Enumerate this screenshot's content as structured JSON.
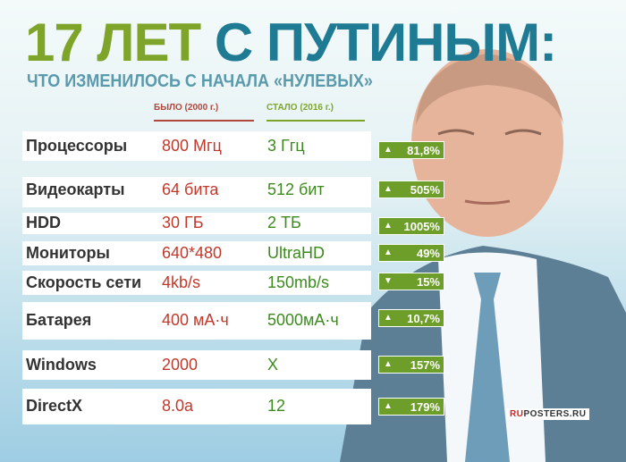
{
  "title": {
    "part1": "17 ЛЕТ",
    "part2": "С ПУТИНЫМ:"
  },
  "subtitle": "ЧТО ИЗМЕНИЛОСЬ С НАЧАЛА «НУЛЕВЫХ»",
  "columns": {
    "before": "БЫЛО (2000 г.)",
    "after": "СТАЛО (2016 г.)"
  },
  "rows": [
    {
      "label": "Процессоры",
      "before": "800 Мгц",
      "after": "3 Ггц",
      "direction": "up",
      "change": "81,8%"
    },
    {
      "label": "Видеокарты",
      "before": "64 бита",
      "after": "512 бит",
      "direction": "up",
      "change": "505%"
    },
    {
      "label": "HDD",
      "before": "30 ГБ",
      "after": "2 ТБ",
      "direction": "up",
      "change": "1005%"
    },
    {
      "label": "Мониторы",
      "before": "640*480",
      "after": "UltraHD",
      "direction": "up",
      "change": "49%"
    },
    {
      "label": "Скорость сети",
      "before": "4kb/s",
      "after": "150mb/s",
      "direction": "down",
      "change": "15%"
    },
    {
      "label": "Батарея",
      "before": "400 мА·ч",
      "after": "5000мА·ч",
      "direction": "up",
      "change": "10,7%"
    },
    {
      "label": "Windows",
      "before": "2000",
      "after": "X",
      "direction": "up",
      "change": "157%"
    },
    {
      "label": "DirectX",
      "before": "8.0a",
      "after": "12",
      "direction": "up",
      "change": "179%"
    }
  ],
  "arrows": {
    "up": "▲",
    "down": "▼"
  },
  "watermark": {
    "ru": "RU",
    "rest": "POSTERS.RU"
  },
  "colors": {
    "green": "#7ea52a",
    "teal": "#1e7b93",
    "red": "#c0392b",
    "badge": "#6e9e2a"
  }
}
